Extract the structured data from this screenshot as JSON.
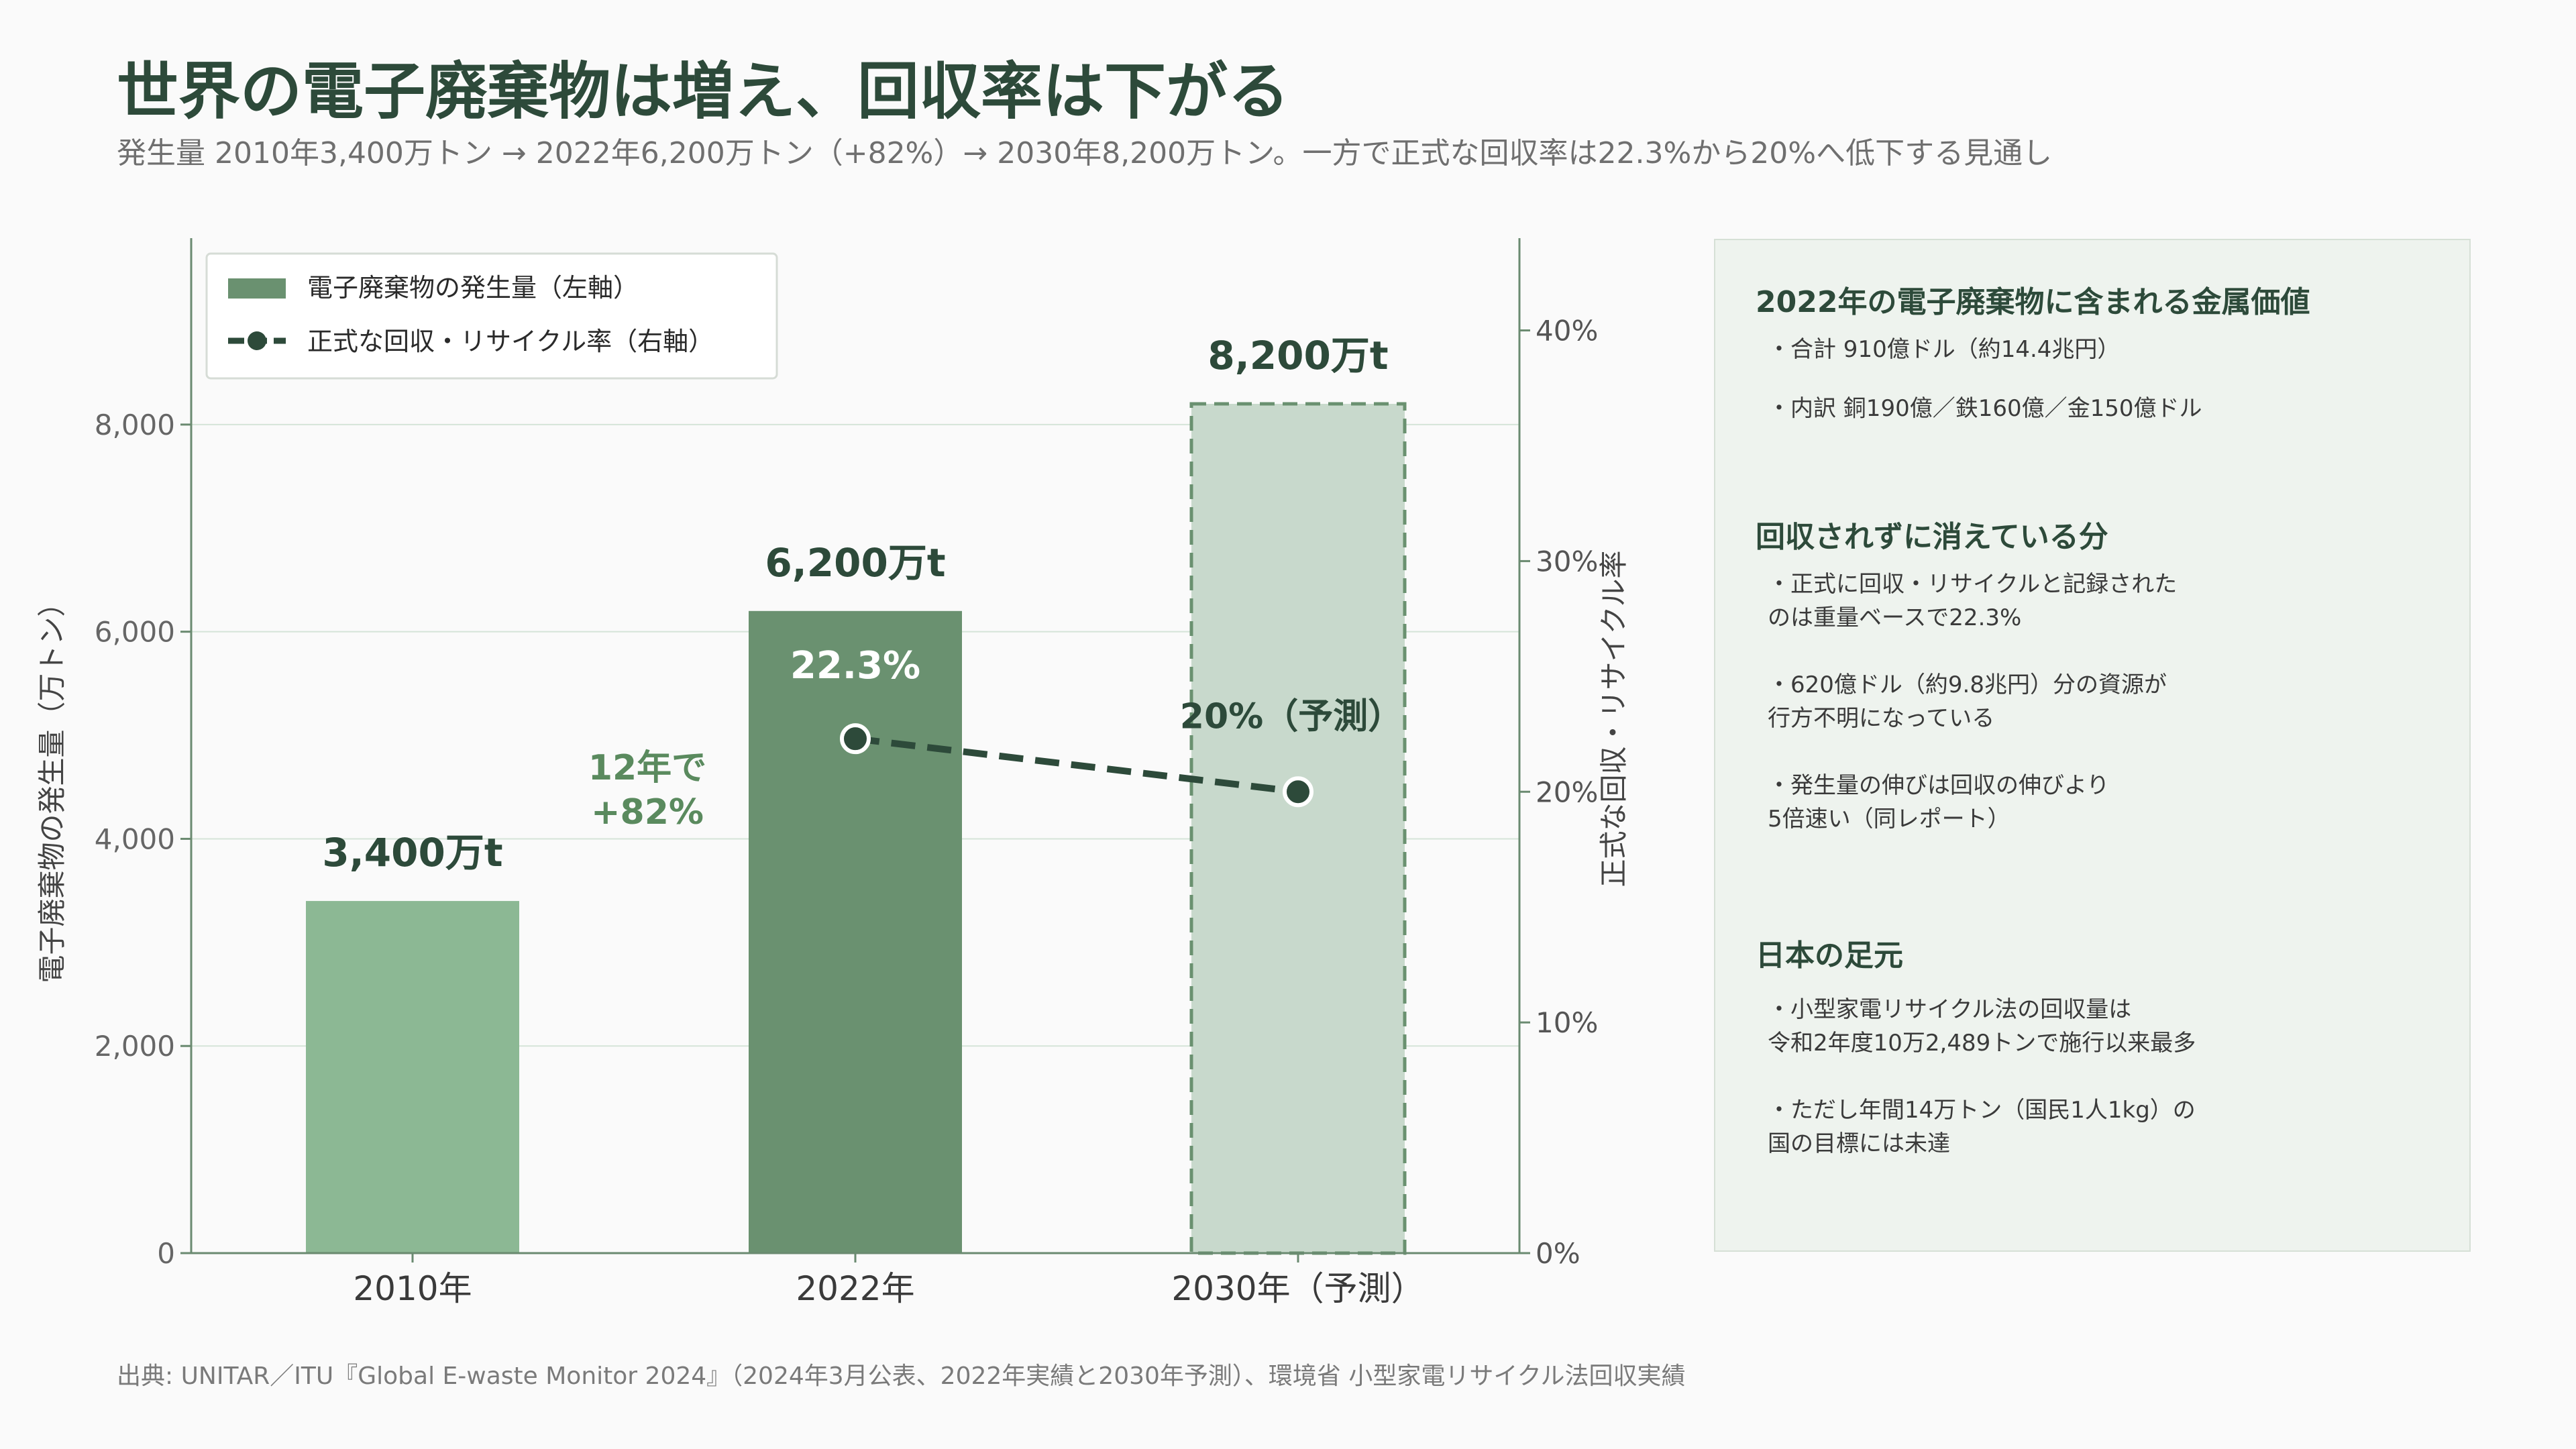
{
  "title": "世界の電子廃棄物は増え、回収率は下がる",
  "subtitle": "発生量 2010年3,400万トン → 2022年6,200万トン（+82%）→ 2030年8,200万トン。一方で正式な回収率は22.3%から20%へ低下する見通し",
  "colors": {
    "bar_2010": "#8cb894",
    "bar_2022": "#6a9170",
    "bar_2030_fill": "#c8d9cc",
    "bar_2030_stroke": "#6a9170",
    "line": "#2d4a3a",
    "accent_text": "#5a8a5e",
    "grid": "#d5e4d8"
  },
  "chart_data": {
    "type": "bar",
    "categories": [
      "2010年",
      "2022年",
      "2030年（予測）"
    ],
    "ylabel": "電子廃棄物の発生量（万トン）",
    "y2label": "正式な回収・リサイクル率",
    "ylim": [
      0,
      9800
    ],
    "y2lim": [
      0,
      44
    ],
    "yticks": [
      0,
      2000,
      4000,
      6000,
      8000
    ],
    "ytick_labels": [
      "0",
      "2,000",
      "4,000",
      "6,000",
      "8,000"
    ],
    "y2ticks": [
      0,
      10,
      20,
      30,
      40
    ],
    "y2tick_labels": [
      "0%",
      "10%",
      "20%",
      "30%",
      "40%"
    ],
    "grid": true,
    "legend_position": "top-left",
    "series": [
      {
        "name": "電子廃棄物の発生量（左軸）",
        "type": "bar",
        "axis": "left",
        "values": [
          3400,
          6200,
          8200
        ],
        "labels": [
          "3,400万t",
          "6,200万t",
          "8,200万t"
        ],
        "forecast": [
          false,
          false,
          true
        ]
      },
      {
        "name": "正式な回収・リサイクル率（右軸）",
        "type": "line",
        "axis": "right",
        "x": [
          "2022年",
          "2030年（予測）"
        ],
        "values": [
          22.3,
          20
        ],
        "labels": [
          "22.3%",
          "20%（予測）"
        ]
      }
    ],
    "annotations": [
      "12年で",
      "+82%"
    ]
  },
  "panel": {
    "sections": [
      {
        "heading": "2022年の電子廃棄物に含まれる金属価値",
        "items": [
          "・合計 910億ドル（約14.4兆円）",
          "・内訳 銅190億／鉄160億／金150億ドル"
        ]
      },
      {
        "heading": "回収されずに消えている分",
        "items": [
          "・正式に回収・リサイクルと記録された\nのは重量ベースで22.3%",
          "・620億ドル（約9.8兆円）分の資源が\n行方不明になっている",
          "・発生量の伸びは回収の伸びより\n5倍速い（同レポート）"
        ]
      },
      {
        "heading": "日本の足元",
        "items": [
          "・小型家電リサイクル法の回収量は\n令和2年度10万2,489トンで施行以来最多",
          "・ただし年間14万トン（国民1人1kg）の\n国の目標には未達"
        ]
      }
    ]
  },
  "source": "出典: UNITAR／ITU『Global E-waste Monitor 2024』（2024年3月公表、2022年実績と2030年予測）、環境省 小型家電リサイクル法回収実績"
}
